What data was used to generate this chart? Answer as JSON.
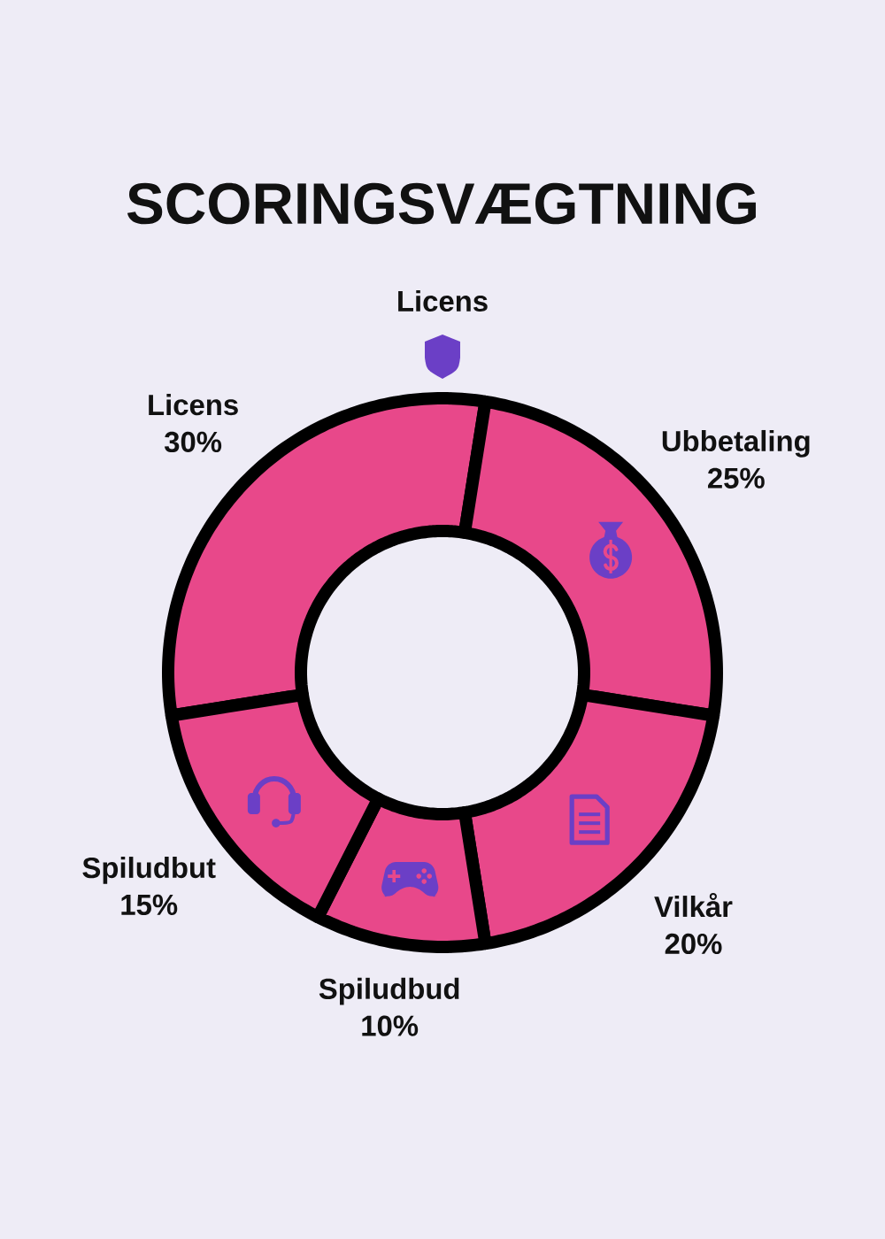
{
  "chart_data": {
    "type": "donut",
    "title": "SCORINGSVÆGTNING",
    "categories": [
      "Licens",
      "Ubbetaling",
      "Vilkår",
      "Spiludbud",
      "Spiludbut"
    ],
    "values": [
      30,
      25,
      20,
      10,
      15
    ],
    "value_labels": [
      "30%",
      "25%",
      "20%",
      "10%",
      "15%"
    ],
    "colors": [
      "#e8488a",
      "#e8488a",
      "#e8488a",
      "#e8488a",
      "#e8488a"
    ],
    "annotations": [
      "Licens"
    ]
  }
}
